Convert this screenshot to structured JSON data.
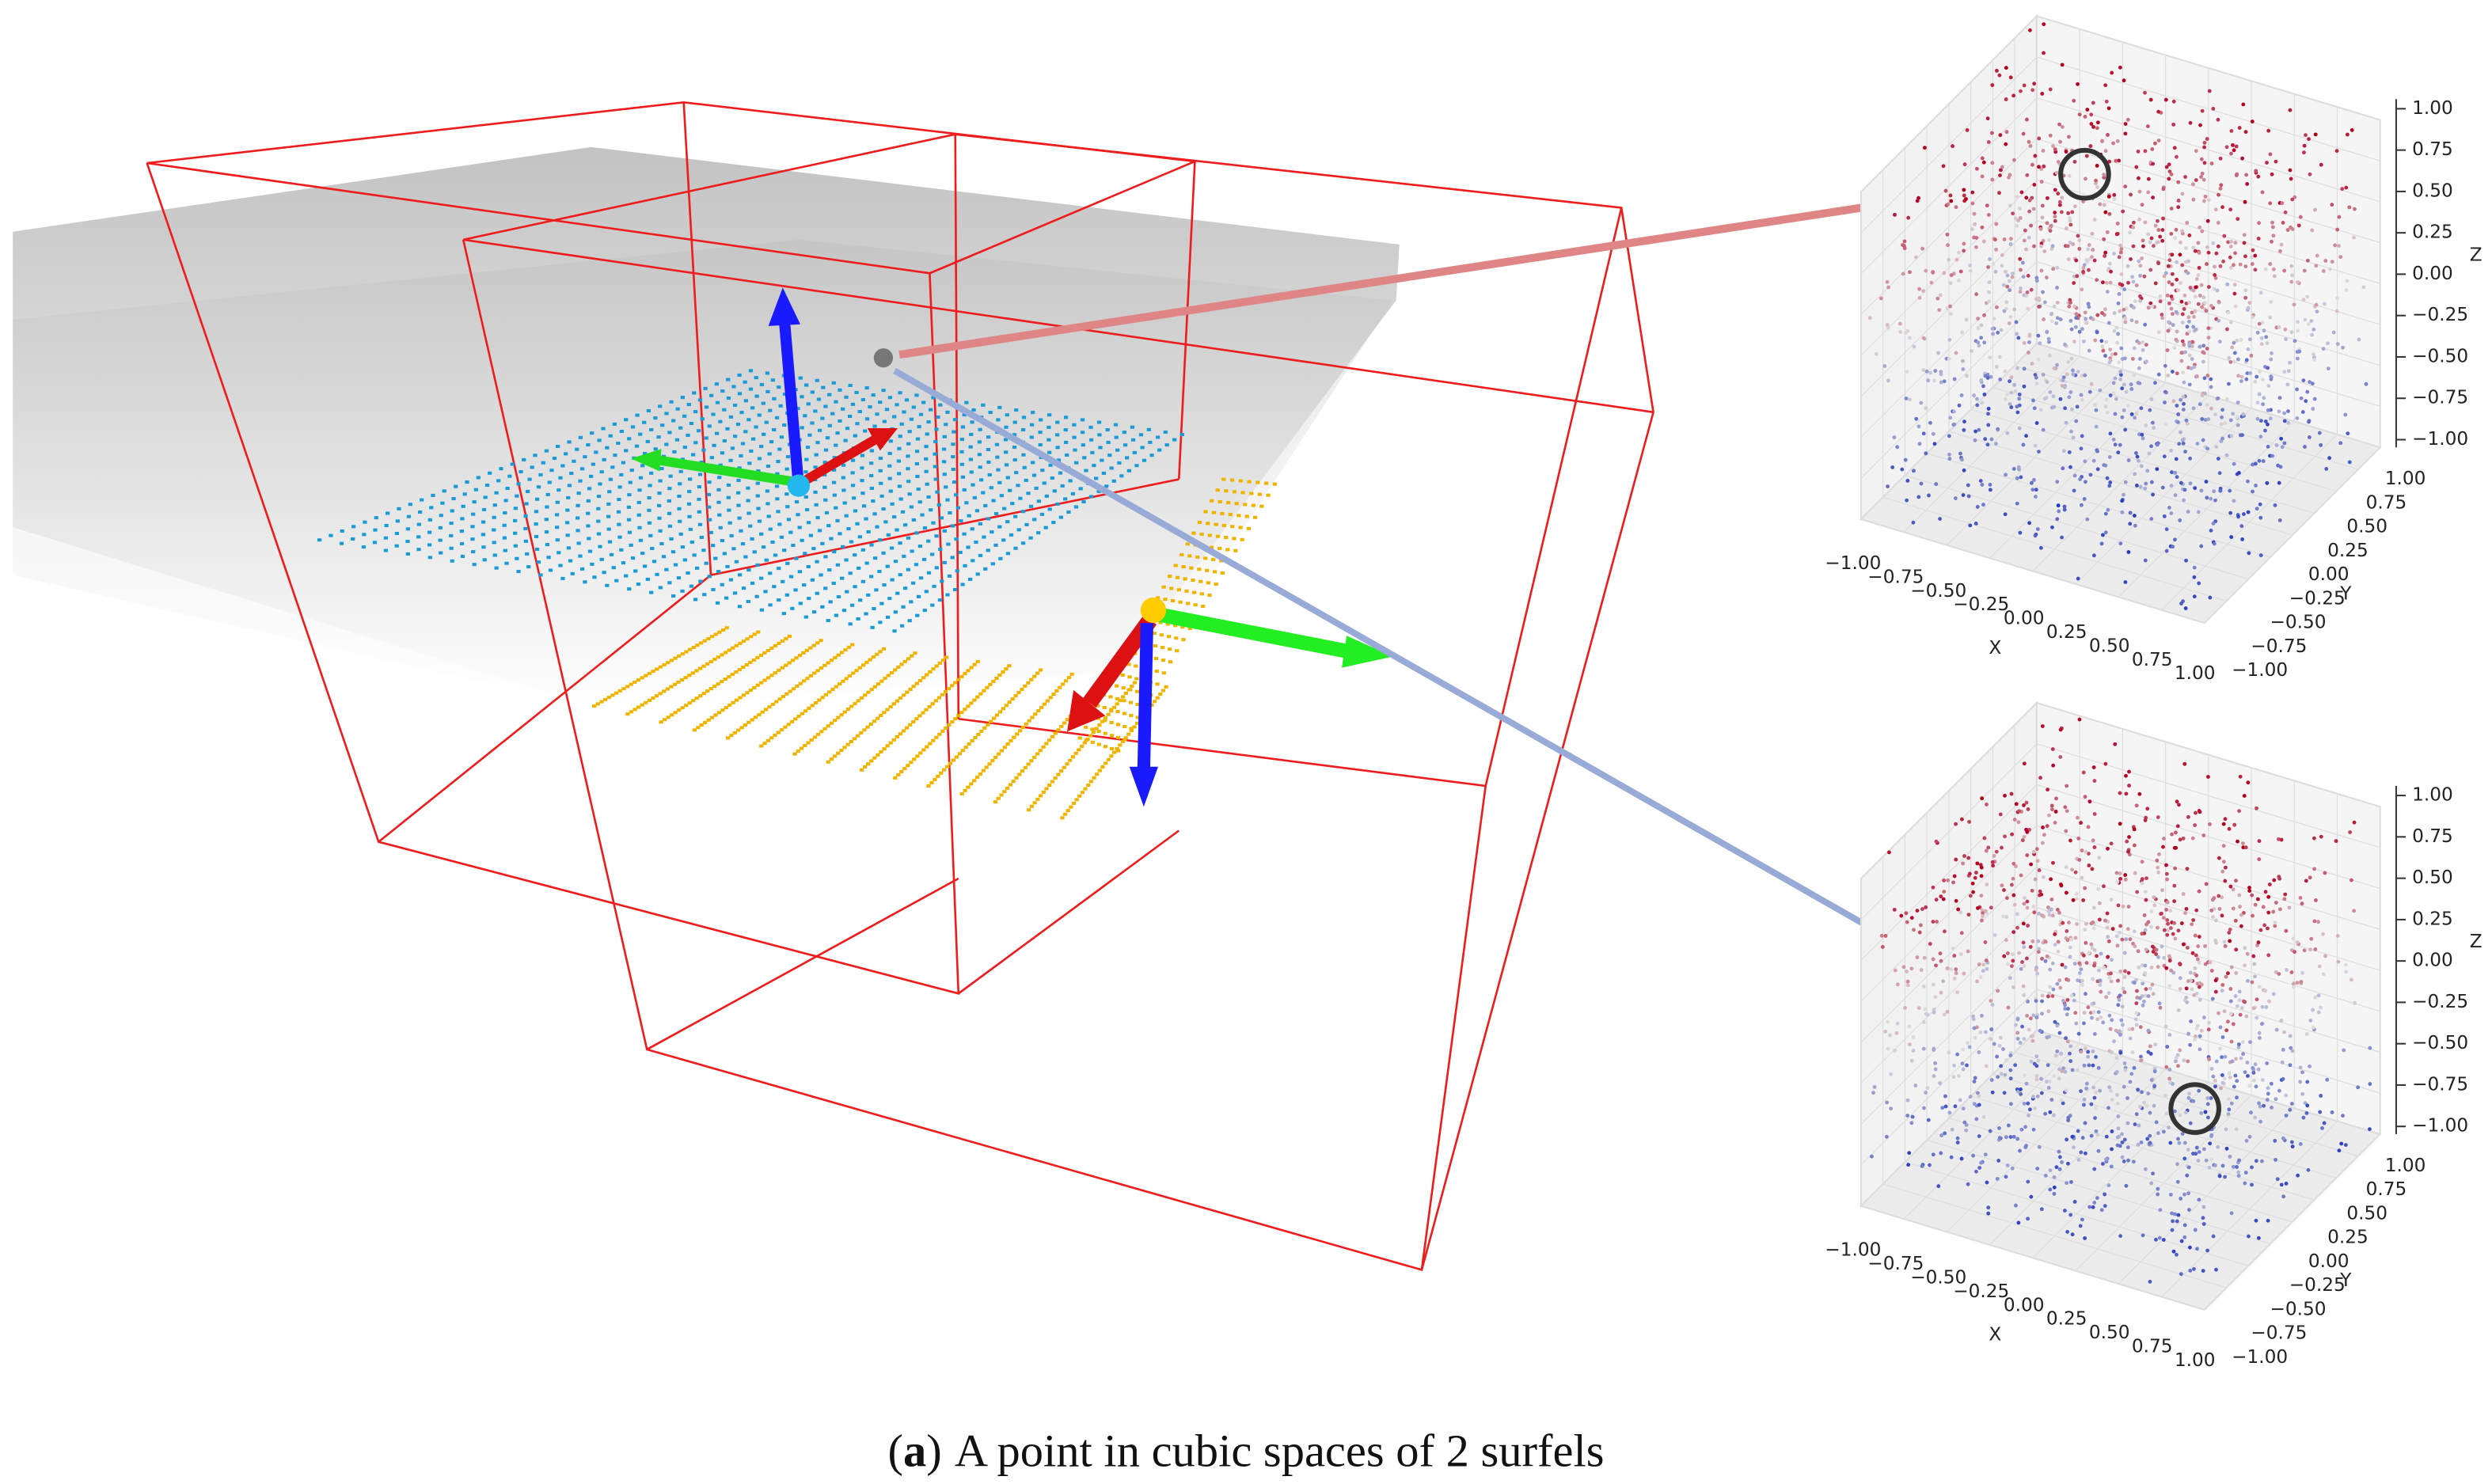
{
  "caption": {
    "prefix": "(",
    "label": "a",
    "suffix": ")",
    "text": "A point in cubic spaces of 2 surfels"
  },
  "plots": [
    {
      "x_label": "X",
      "y_label": "Y",
      "z_label": "Z",
      "xticks": [
        "−1.00",
        "−0.75",
        "−0.50",
        "−0.25",
        "0.00",
        "0.25",
        "0.50",
        "0.75",
        "1.00"
      ],
      "yticks": [
        "1.00",
        "0.75",
        "0.50",
        "0.25",
        "0.00",
        "−0.25",
        "−0.50",
        "−0.75",
        "−1.00"
      ],
      "zticks": [
        "1.00",
        "0.75",
        "0.50",
        "0.25",
        "0.00",
        "−0.25",
        "−0.50",
        "−0.75",
        "−1.00"
      ]
    },
    {
      "x_label": "X",
      "y_label": "Y",
      "z_label": "Z",
      "xticks": [
        "−1.00",
        "−0.75",
        "−0.50",
        "−0.25",
        "0.00",
        "0.25",
        "0.50",
        "0.75",
        "1.00"
      ],
      "yticks": [
        "1.00",
        "0.75",
        "0.50",
        "0.25",
        "0.00",
        "−0.25",
        "−0.50",
        "−0.75",
        "−1.00"
      ],
      "zticks": [
        "1.00",
        "0.75",
        "0.50",
        "0.25",
        "0.00",
        "−0.25",
        "−0.50",
        "−0.75",
        "−1.00"
      ]
    }
  ]
}
